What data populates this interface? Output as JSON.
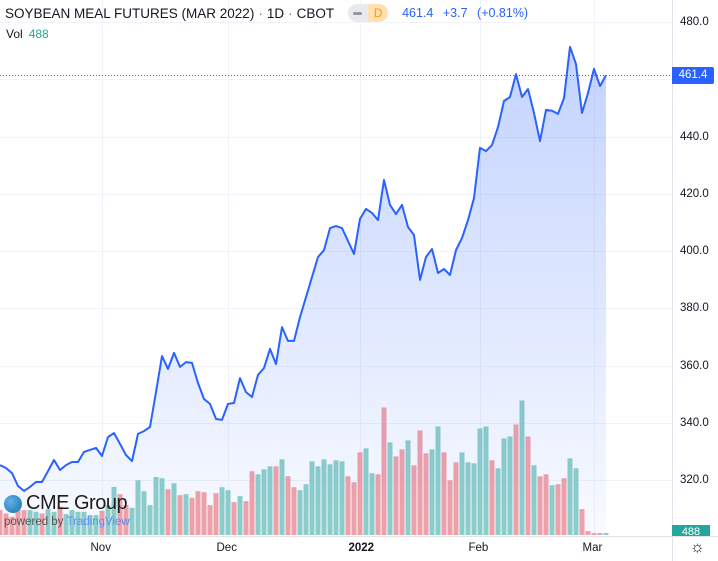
{
  "header": {
    "title": "SOYBEAN MEAL FUTURES (MAR 2022)",
    "sep1": "·",
    "interval": "1D",
    "sep2": "·",
    "exchange": "CBOT",
    "mode_badge": "D",
    "last": "461.4",
    "change": "+3.7",
    "change_pct": "(+0.81%)"
  },
  "volume_legend": {
    "label": "Vol",
    "value": "488"
  },
  "branding": {
    "logo": "CME Group",
    "powered": "powered by",
    "tv": "TradingView"
  },
  "colors": {
    "line": "#2962ff",
    "up": "#26a69a",
    "down": "#ef5350",
    "grid": "#f0f3fa"
  },
  "price_tag": "461.4",
  "volume_tag": "488",
  "chart_data": {
    "type": "area",
    "title": "SOYBEAN MEAL FUTURES (MAR 2022) · 1D · CBOT",
    "ylim": [
      320,
      480
    ],
    "y_ticks": [
      "480.0",
      "440.0",
      "420.0",
      "400.0",
      "380.0",
      "360.0",
      "340.0",
      "320.0"
    ],
    "x_ticks": [
      "Nov",
      "Dec",
      "2022",
      "Feb",
      "Mar"
    ],
    "x_tick_index": [
      17,
      38,
      60,
      80,
      99
    ],
    "last_price": 461.4,
    "close": [
      325.2,
      324.2,
      322.4,
      317.9,
      316.2,
      317.6,
      319.3,
      319.3,
      323.1,
      327.0,
      323.5,
      325.2,
      326.3,
      326.3,
      329.8,
      330.5,
      331.2,
      328.4,
      335.0,
      336.4,
      332.6,
      328.7,
      326.6,
      336.1,
      337.1,
      338.5,
      350.7,
      363.3,
      358.8,
      364.4,
      359.5,
      361.2,
      360.9,
      353.9,
      348.3,
      346.6,
      341.3,
      341.0,
      346.6,
      346.9,
      355.6,
      350.7,
      349.0,
      356.7,
      359.1,
      365.8,
      360.5,
      373.4,
      368.6,
      368.6,
      376.9,
      383.9,
      390.9,
      397.9,
      400.3,
      408.0,
      408.7,
      408.0,
      403.5,
      399.0,
      411.2,
      414.7,
      413.3,
      410.8,
      424.8,
      416.1,
      412.9,
      416.1,
      408.4,
      405.6,
      389.9,
      397.9,
      400.7,
      392.3,
      393.7,
      391.6,
      400.3,
      404.5,
      410.8,
      418.5,
      436.0,
      434.9,
      437.0,
      443.3,
      452.4,
      453.8,
      461.8,
      453.8,
      456.6,
      448.2,
      438.4,
      449.3,
      449.0,
      447.9,
      453.4,
      471.3,
      465.3,
      448.2,
      455.2,
      463.6,
      457.6,
      461.4
    ],
    "volume": [
      6075,
      5265,
      4455,
      6075,
      6075,
      6075,
      5670,
      5265,
      6318,
      5670,
      6885,
      5103,
      6075,
      5670,
      5670,
      4860,
      4860,
      5913,
      7290,
      11745,
      9963,
      7290,
      6642,
      13365,
      10692,
      7290,
      14175,
      13851,
      11178,
      12636,
      9720,
      9963,
      9072,
      10692,
      10449,
      7290,
      10206,
      11664,
      10935,
      8019,
      9477,
      8262,
      15552,
      14823,
      16038,
      16767,
      16767,
      18468,
      14337,
      11664,
      10935,
      12393,
      17982,
      16767,
      18468,
      17253,
      18225,
      17982,
      14337,
      12879,
      20169,
      21141,
      15066,
      14823,
      31104,
      22599,
      19197,
      20898,
      23085,
      17010,
      25515,
      19926,
      20898,
      26487,
      20169,
      13365,
      17739,
      20169,
      17739,
      17496,
      26001,
      26487,
      18225,
      16281,
      23571,
      24057,
      26973,
      32805,
      24057,
      17010,
      14337,
      14823,
      12150,
      12393,
      13851,
      18711,
      16281,
      6318,
      972,
      486,
      486,
      488
    ],
    "volume_dir": "dddddttdttdttttttdttddttttttdtdtdddddttdtddtttdtddttttttttdddttddtddtdddttdddtttttdtttdtdtddtddttddddtdt"
  }
}
